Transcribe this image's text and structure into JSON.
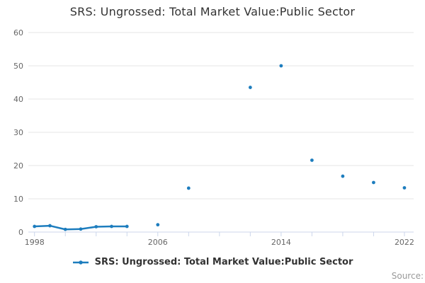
{
  "source_label": "Source:",
  "colors": {
    "series": "#1d7dbe",
    "grid": "#e6e6e6",
    "axis_line": "#ccd6eb",
    "title": "#333333",
    "axis_label": "#666666",
    "legend_text": "#333333",
    "source_text": "#999999",
    "background": "#ffffff"
  },
  "chart_data": {
    "type": "line",
    "title": "SRS: Ungrossed: Total Market Value:Public Sector",
    "xlabel": "",
    "ylabel": "",
    "xlim": [
      1997.6,
      2022.6
    ],
    "ylim": [
      0,
      60
    ],
    "y_ticks": [
      0,
      10,
      20,
      30,
      40,
      50,
      60
    ],
    "x_ticks_all": [
      1998,
      2000,
      2002,
      2004,
      2006,
      2008,
      2010,
      2012,
      2014,
      2016,
      2018,
      2020,
      2022
    ],
    "x_ticks_labeled": [
      1998,
      2006,
      2014,
      2022
    ],
    "grid": "horizontal",
    "legend_position": "bottom-center",
    "connect_max_gap_years": 1,
    "series": [
      {
        "name": "SRS: Ungrossed: Total Market Value:Public Sector",
        "points": [
          [
            1998,
            1.7
          ],
          [
            1999,
            1.9
          ],
          [
            2000,
            0.8
          ],
          [
            2001,
            0.9
          ],
          [
            2002,
            1.6
          ],
          [
            2003,
            1.7
          ],
          [
            2004,
            1.7
          ],
          [
            2006,
            2.2
          ],
          [
            2008,
            13.2
          ],
          [
            2012,
            43.5
          ],
          [
            2014,
            50.0
          ],
          [
            2016,
            21.6
          ],
          [
            2018,
            16.8
          ],
          [
            2020,
            14.9
          ],
          [
            2022,
            13.3
          ]
        ]
      }
    ]
  }
}
